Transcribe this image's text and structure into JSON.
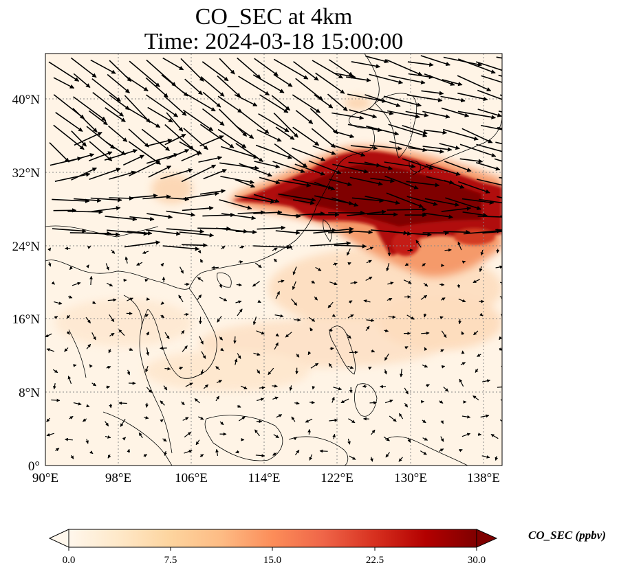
{
  "title": {
    "line1": "CO_SEC at 4km",
    "line2": "Time: 2024-03-18 15:00:00"
  },
  "map": {
    "projection": "PlateCarree",
    "lon_range": [
      90,
      140
    ],
    "lat_range": [
      0,
      45
    ],
    "lon_ticks": [
      "90°E",
      "98°E",
      "106°E",
      "114°E",
      "122°E",
      "130°E",
      "138°E"
    ],
    "lat_ticks": [
      "0°",
      "8°N",
      "16°N",
      "24°N",
      "32°N",
      "40°N"
    ],
    "gridlines": "dotted grey",
    "field": "CO_SEC concentration with wind vectors",
    "plume": "high CO_SEC band from eastern China over the East China Sea to Japan and the western Pacific (~24°N–34°N, 116°E–140°E)"
  },
  "colorbar": {
    "label": "CO_SEC (ppbv)",
    "ticks": [
      "0.0",
      "7.5",
      "15.0",
      "22.5",
      "30.0"
    ],
    "range": [
      0,
      30
    ],
    "colormap": "OrRd",
    "extend": "both",
    "colors": [
      "#fff7ec",
      "#fee8c8",
      "#fdd49e",
      "#fdbb84",
      "#fc8d59",
      "#ef6548",
      "#d7301f",
      "#b30000",
      "#7f0000"
    ]
  }
}
